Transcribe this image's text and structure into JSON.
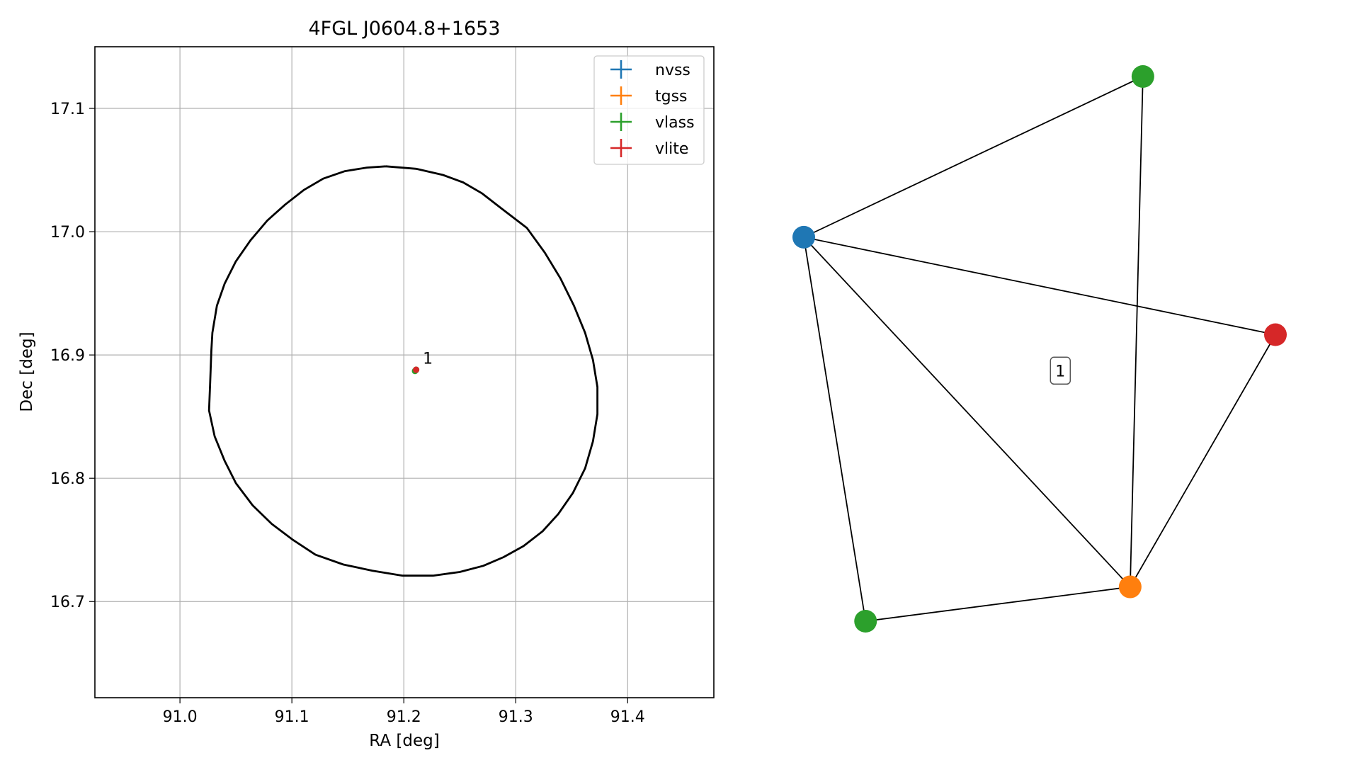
{
  "chart_data": [
    {
      "type": "scatter",
      "title": "4FGL J0604.8+1653",
      "xlabel": "RA [deg]",
      "ylabel": "Dec [deg]",
      "xlim": [
        90.924,
        91.477
      ],
      "ylim": [
        16.622,
        17.15
      ],
      "xticks": [
        91.0,
        91.1,
        91.2,
        91.3,
        91.4
      ],
      "yticks": [
        16.7,
        16.8,
        16.9,
        17.0,
        17.1
      ],
      "xtick_labels": [
        "91.0",
        "91.1",
        "91.2",
        "91.3",
        "91.4"
      ],
      "ytick_labels": [
        "16.7",
        "16.8",
        "16.9",
        "17.0",
        "17.1"
      ],
      "grid": true,
      "legend_position": "top-right",
      "series": [
        {
          "name": "nvss",
          "color": "#1f77b4",
          "x": [
            91.211
          ],
          "y": [
            16.888
          ]
        },
        {
          "name": "tgss",
          "color": "#ff7f0e",
          "x": [
            91.211
          ],
          "y": [
            16.888
          ]
        },
        {
          "name": "vlass",
          "color": "#2ca02c",
          "x": [
            91.211,
            91.21
          ],
          "y": [
            16.888,
            16.887
          ]
        },
        {
          "name": "vlite",
          "color": "#d62728",
          "x": [
            91.211
          ],
          "y": [
            16.888
          ]
        }
      ],
      "point_label": {
        "text": "1",
        "x": 91.217,
        "y": 16.893
      },
      "ellipse": {
        "color": "#000000",
        "points": [
          [
            91.184,
            17.053
          ],
          [
            91.211,
            17.051
          ],
          [
            91.235,
            17.046
          ],
          [
            91.253,
            17.04
          ],
          [
            91.27,
            17.031
          ],
          [
            91.287,
            17.019
          ],
          [
            91.31,
            17.003
          ],
          [
            91.326,
            16.983
          ],
          [
            91.34,
            16.962
          ],
          [
            91.352,
            16.94
          ],
          [
            91.362,
            16.918
          ],
          [
            91.369,
            16.896
          ],
          [
            91.373,
            16.874
          ],
          [
            91.373,
            16.852
          ],
          [
            91.369,
            16.83
          ],
          [
            91.362,
            16.808
          ],
          [
            91.351,
            16.788
          ],
          [
            91.338,
            16.771
          ],
          [
            91.324,
            16.757
          ],
          [
            91.307,
            16.745
          ],
          [
            91.289,
            16.736
          ],
          [
            91.271,
            16.729
          ],
          [
            91.25,
            16.724
          ],
          [
            91.226,
            16.721
          ],
          [
            91.199,
            16.721
          ],
          [
            91.172,
            16.725
          ],
          [
            91.146,
            16.73
          ],
          [
            91.121,
            16.738
          ],
          [
            91.101,
            16.75
          ],
          [
            91.082,
            16.763
          ],
          [
            91.065,
            16.778
          ],
          [
            91.05,
            16.796
          ],
          [
            91.04,
            16.814
          ],
          [
            91.031,
            16.834
          ],
          [
            91.026,
            16.855
          ],
          [
            91.027,
            16.878
          ],
          [
            91.028,
            16.903
          ],
          [
            91.029,
            16.918
          ],
          [
            91.033,
            16.94
          ],
          [
            91.04,
            16.958
          ],
          [
            91.05,
            16.976
          ],
          [
            91.063,
            16.993
          ],
          [
            91.078,
            17.009
          ],
          [
            91.094,
            17.022
          ],
          [
            91.111,
            17.034
          ],
          [
            91.128,
            17.043
          ],
          [
            91.147,
            17.049
          ],
          [
            91.167,
            17.052
          ],
          [
            91.184,
            17.053
          ]
        ]
      }
    },
    {
      "type": "network",
      "nodes": [
        {
          "id": "nvss",
          "color": "#1f77b4",
          "x": 0.0,
          "y": 0.705
        },
        {
          "id": "vlass_top",
          "color": "#2ca02c",
          "x": 0.719,
          "y": 1.0
        },
        {
          "id": "vlite",
          "color": "#d62728",
          "x": 1.0,
          "y": 0.526
        },
        {
          "id": "tgss",
          "color": "#ff7f0e",
          "x": 0.692,
          "y": 0.063
        },
        {
          "id": "vlass_bottom",
          "color": "#2ca02c",
          "x": 0.131,
          "y": 0.0
        }
      ],
      "edges": [
        [
          "nvss",
          "vlass_top"
        ],
        [
          "nvss",
          "vlite"
        ],
        [
          "nvss",
          "tgss"
        ],
        [
          "nvss",
          "vlass_bottom"
        ],
        [
          "vlass_top",
          "tgss"
        ],
        [
          "vlite",
          "tgss"
        ],
        [
          "tgss",
          "vlass_bottom"
        ]
      ],
      "cluster_label": {
        "text": "1",
        "x": 0.544,
        "y": 0.46
      }
    }
  ]
}
